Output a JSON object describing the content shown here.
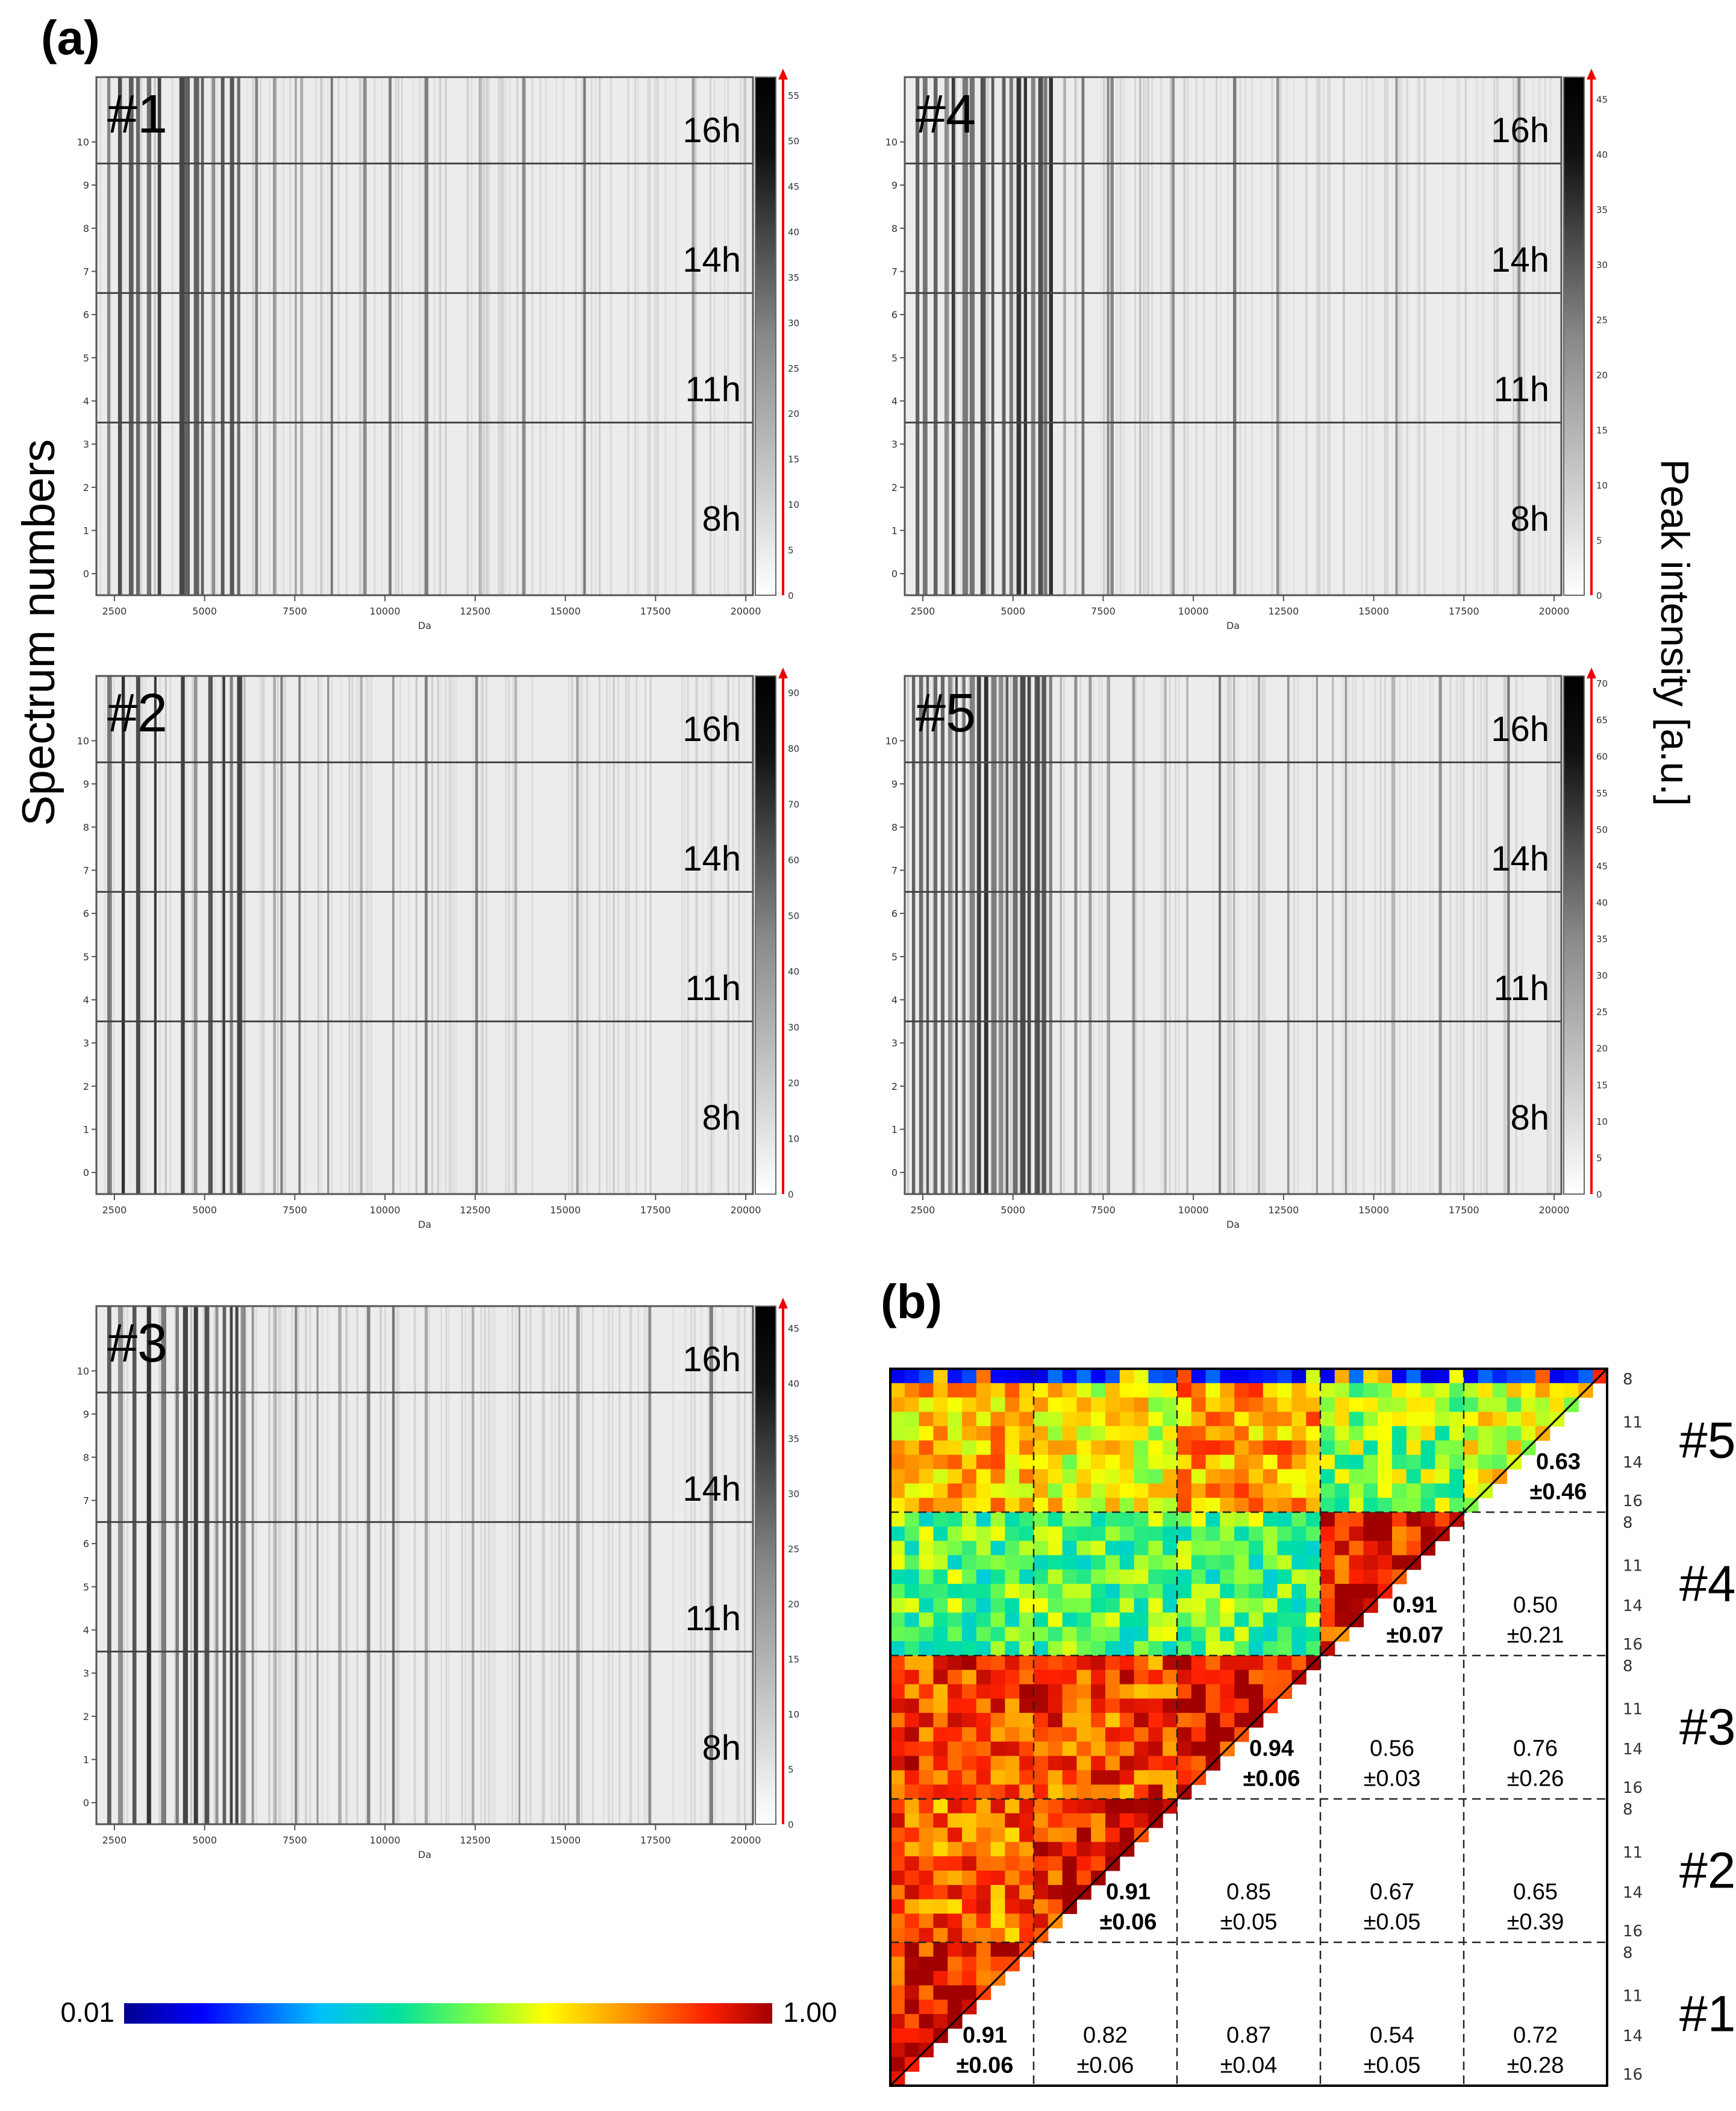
{
  "figure": {
    "panel_a_label": "(a)",
    "panel_b_label": "(b)",
    "y_axis_label": "Spectrum numbers",
    "colorbar_axis_label": "Peak intensity [a.u.]",
    "x_axis_unit": "Da"
  },
  "chart_data": [
    {
      "type": "heatmap",
      "name": "#1",
      "xlabel": "Da",
      "x_ticks": [
        "2500",
        "5000",
        "7500",
        "10000",
        "12500",
        "15000",
        "17500",
        "20000"
      ],
      "y_ticks": [
        "0",
        "1",
        "2",
        "3",
        "4",
        "5",
        "6",
        "7",
        "8",
        "9",
        "10"
      ],
      "time_labels": [
        "16h",
        "14h",
        "11h",
        "8h"
      ],
      "colorbar_ticks": [
        "0",
        "5",
        "10",
        "15",
        "20",
        "25",
        "30",
        "35",
        "40",
        "45",
        "50",
        "55"
      ],
      "colorbar_max": 57,
      "peaks_da": [
        2300,
        2600,
        2900,
        3100,
        3400,
        3700,
        4300,
        4450,
        4700,
        4900,
        5200,
        5450,
        5700,
        5900,
        6400,
        6900,
        7500,
        7650,
        8500,
        9400,
        10100,
        11100,
        12600,
        13800,
        15500,
        18500
      ]
    },
    {
      "type": "heatmap",
      "name": "#2",
      "xlabel": "Da",
      "x_ticks": [
        "2500",
        "5000",
        "7500",
        "10000",
        "12500",
        "15000",
        "17500",
        "20000"
      ],
      "y_ticks": [
        "0",
        "1",
        "2",
        "3",
        "4",
        "5",
        "6",
        "7",
        "8",
        "9",
        "10"
      ],
      "time_labels": [
        "16h",
        "14h",
        "11h",
        "8h"
      ],
      "colorbar_ticks": [
        "0",
        "10",
        "20",
        "30",
        "40",
        "50",
        "60",
        "70",
        "80",
        "90"
      ],
      "colorbar_max": 93,
      "peaks_da": [
        2300,
        2700,
        3100,
        3600,
        4350,
        4700,
        5100,
        5500,
        5700,
        5900,
        6900,
        7100,
        7600,
        8400,
        9300,
        10200,
        11100,
        12500,
        13600,
        15300
      ]
    },
    {
      "type": "heatmap",
      "name": "#3",
      "xlabel": "Da",
      "x_ticks": [
        "2500",
        "5000",
        "7500",
        "10000",
        "12500",
        "15000",
        "17500",
        "20000"
      ],
      "y_ticks": [
        "0",
        "1",
        "2",
        "3",
        "4",
        "5",
        "6",
        "7",
        "8",
        "9",
        "10"
      ],
      "time_labels": [
        "16h",
        "14h",
        "11h",
        "8h"
      ],
      "colorbar_ticks": [
        "0",
        "5",
        "10",
        "15",
        "20",
        "25",
        "30",
        "35",
        "40",
        "45"
      ],
      "colorbar_max": 47,
      "peaks_da": [
        2300,
        2600,
        3000,
        3400,
        3800,
        4200,
        4400,
        4700,
        5000,
        5300,
        5500,
        5700,
        5850,
        6000,
        6300,
        6900,
        7500,
        8100,
        8700,
        9500,
        10200,
        11100,
        12400,
        13700,
        15300,
        17300,
        19000
      ]
    },
    {
      "type": "heatmap",
      "name": "#4",
      "xlabel": "Da",
      "x_ticks": [
        "2500",
        "5000",
        "7500",
        "10000",
        "12500",
        "15000",
        "17500",
        "20000"
      ],
      "y_ticks": [
        "0",
        "1",
        "2",
        "3",
        "4",
        "5",
        "6",
        "7",
        "8",
        "9",
        "10"
      ],
      "time_labels": [
        "16h",
        "14h",
        "11h",
        "8h"
      ],
      "colorbar_ticks": [
        "0",
        "5",
        "10",
        "15",
        "20",
        "25",
        "30",
        "35",
        "40",
        "45"
      ],
      "colorbar_max": 47,
      "peaks_da": [
        2300,
        2500,
        2800,
        3100,
        3300,
        3600,
        3800,
        4100,
        4400,
        4700,
        4900,
        5100,
        5300,
        5500,
        5700,
        5850,
        6000,
        6400,
        6900,
        7600,
        7700,
        8500,
        9400,
        11100,
        12300,
        15600,
        19000
      ]
    },
    {
      "type": "heatmap",
      "name": "#5",
      "xlabel": "Da",
      "x_ticks": [
        "2500",
        "5000",
        "7500",
        "10000",
        "12500",
        "15000",
        "17500",
        "20000"
      ],
      "y_ticks": [
        "0",
        "1",
        "2",
        "3",
        "4",
        "5",
        "6",
        "7",
        "8",
        "9",
        "10"
      ],
      "time_labels": [
        "16h",
        "14h",
        "11h",
        "8h"
      ],
      "colorbar_ticks": [
        "0",
        "5",
        "10",
        "15",
        "20",
        "25",
        "30",
        "35",
        "40",
        "45",
        "50",
        "55",
        "60",
        "65",
        "70"
      ],
      "colorbar_max": 71,
      "peaks_da": [
        2200,
        2400,
        2600,
        2800,
        3000,
        3200,
        3400,
        3600,
        3800,
        4000,
        4200,
        4400,
        4600,
        4800,
        5000,
        5200,
        5400,
        5600,
        5800,
        6000,
        6300,
        6700,
        7100,
        7600,
        8300,
        9200,
        9800,
        10700,
        11100,
        11800,
        12600,
        13400,
        14200,
        15500,
        16800,
        18700
      ]
    },
    {
      "type": "heatmap",
      "name": "similarity-matrix",
      "colorscale": {
        "min": 0.01,
        "max": 1.0,
        "min_label": "0.01",
        "max_label": "1.00"
      },
      "groups": [
        "#1",
        "#2",
        "#3",
        "#4",
        "#5"
      ],
      "time_ticks": [
        "8",
        "11",
        "14",
        "16"
      ],
      "cells": [
        {
          "row": "#1",
          "col": "#1",
          "mean": "0.91",
          "sd": "±0.06",
          "diagonal": true
        },
        {
          "row": "#1",
          "col": "#2",
          "mean": "0.82",
          "sd": "±0.06"
        },
        {
          "row": "#1",
          "col": "#3",
          "mean": "0.87",
          "sd": "±0.04"
        },
        {
          "row": "#1",
          "col": "#4",
          "mean": "0.54",
          "sd": "±0.05"
        },
        {
          "row": "#1",
          "col": "#5",
          "mean": "0.72",
          "sd": "±0.28"
        },
        {
          "row": "#2",
          "col": "#2",
          "mean": "0.91",
          "sd": "±0.06",
          "diagonal": true
        },
        {
          "row": "#2",
          "col": "#3",
          "mean": "0.85",
          "sd": "±0.05"
        },
        {
          "row": "#2",
          "col": "#4",
          "mean": "0.67",
          "sd": "±0.05"
        },
        {
          "row": "#2",
          "col": "#5",
          "mean": "0.65",
          "sd": "±0.39"
        },
        {
          "row": "#3",
          "col": "#3",
          "mean": "0.94",
          "sd": "±0.06",
          "diagonal": true
        },
        {
          "row": "#3",
          "col": "#4",
          "mean": "0.56",
          "sd": "±0.03"
        },
        {
          "row": "#3",
          "col": "#5",
          "mean": "0.76",
          "sd": "±0.26"
        },
        {
          "row": "#4",
          "col": "#4",
          "mean": "0.91",
          "sd": "±0.07",
          "diagonal": true
        },
        {
          "row": "#4",
          "col": "#5",
          "mean": "0.50",
          "sd": "±0.21"
        },
        {
          "row": "#5",
          "col": "#5",
          "mean": "0.63",
          "sd": "±0.46",
          "diagonal": true
        }
      ]
    }
  ]
}
